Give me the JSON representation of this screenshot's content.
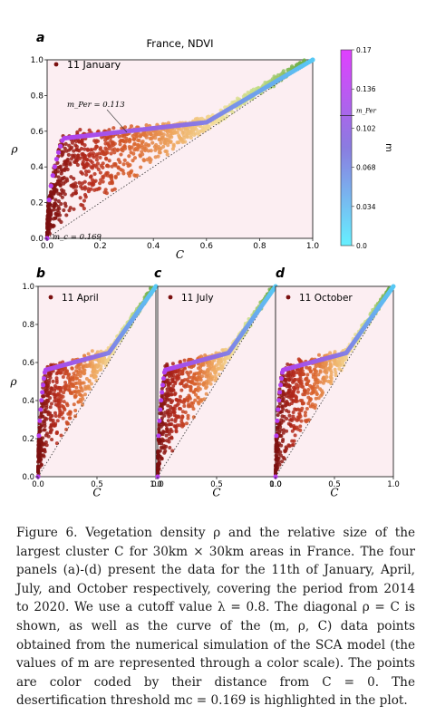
{
  "figure": {
    "panel_title": "France, NDVI",
    "colorbar": {
      "label": "m",
      "ticks": [
        "0.17",
        "0.136",
        "0.102",
        "0.068",
        "0.034",
        "0.0"
      ],
      "marker_label": "m_Per",
      "colors": [
        "#66f0ff",
        "#8a7ce0",
        "#e040ff"
      ]
    },
    "annotations": {
      "m_per": "m_Per = 0.113",
      "m_c": "m_c = 0.169"
    },
    "colors": {
      "background": "#fceef2",
      "cloud": [
        "#7a0f0f",
        "#b52a1c",
        "#d9622b",
        "#eea860",
        "#f3df9a",
        "#c2dd86",
        "#6fae4a"
      ],
      "curve": [
        "#b63cf0",
        "#8f6ee2",
        "#57c8f4"
      ]
    }
  },
  "chart_data": [
    {
      "type": "scatter",
      "panel": "a",
      "title": "France, NDVI",
      "legend": "11 January",
      "legend_placement": "top-left",
      "xlabel": "C",
      "ylabel": "ρ",
      "xlim": [
        0,
        1.0
      ],
      "ylim": [
        0,
        1.0
      ],
      "xticks": [
        "0.0",
        "0.2",
        "0.4",
        "0.6",
        "0.8",
        "1.0"
      ],
      "yticks": [
        "0.0",
        "0.2",
        "0.4",
        "0.6",
        "0.8",
        "1.0"
      ],
      "grid": false,
      "series": [
        {
          "name": "11 January",
          "kind": "scatter cloud",
          "approx_points": [
            [
              0.02,
              0.05
            ],
            [
              0.05,
              0.2
            ],
            [
              0.1,
              0.35
            ],
            [
              0.2,
              0.45
            ],
            [
              0.3,
              0.5
            ],
            [
              0.45,
              0.6
            ],
            [
              0.6,
              0.68
            ],
            [
              0.75,
              0.8
            ],
            [
              0.9,
              0.95
            ]
          ]
        },
        {
          "name": "SCA model (m)",
          "kind": "curve",
          "points": [
            [
              0.0,
              0.0
            ],
            [
              0.02,
              0.3
            ],
            [
              0.05,
              0.5
            ],
            [
              0.1,
              0.56
            ],
            [
              0.2,
              0.59
            ],
            [
              0.3,
              0.6
            ],
            [
              0.4,
              0.61
            ],
            [
              0.5,
              0.62
            ],
            [
              0.6,
              0.65
            ],
            [
              0.7,
              0.72
            ],
            [
              0.8,
              0.8
            ],
            [
              0.9,
              0.9
            ],
            [
              1.0,
              1.0
            ]
          ]
        },
        {
          "name": "diagonal ρ = C",
          "kind": "dotted line",
          "points": [
            [
              0.0,
              0.0
            ],
            [
              1.0,
              1.0
            ]
          ]
        }
      ]
    },
    {
      "type": "scatter",
      "panel": "b",
      "legend": "11 April",
      "xlabel": "C",
      "ylabel": "ρ",
      "xlim": [
        0,
        1.0
      ],
      "ylim": [
        0,
        1.0
      ],
      "xticks": [
        "0.0",
        "0.5",
        "1.0"
      ],
      "yticks": [
        "0.0",
        "0.2",
        "0.4",
        "0.6",
        "0.8",
        "1.0"
      ]
    },
    {
      "type": "scatter",
      "panel": "c",
      "legend": "11 July",
      "xlabel": "C",
      "xlim": [
        0,
        1.0
      ],
      "ylim": [
        0,
        1.0
      ],
      "xticks": [
        "0.0",
        "0.5",
        "1.0"
      ]
    },
    {
      "type": "scatter",
      "panel": "d",
      "legend": "11 October",
      "xlabel": "C",
      "xlim": [
        0,
        1.0
      ],
      "ylim": [
        0,
        1.0
      ],
      "xticks": [
        "0.0",
        "0.5",
        "1.0"
      ]
    }
  ],
  "caption": {
    "text": "Figure 6. Vegetation density ρ and the relative size of the largest cluster C for 30km × 30km areas in France. The four panels (a)-(d) present the data for the 11th of January, April, July, and October respectively, covering the period from 2014 to 2020. We use a cutoff value λ = 0.8. The diagonal ρ = C is shown, as well as the curve of the (m, ρ, C) data points obtained from the numerical simulation of the SCA model (the values of m are represented through a color scale). The points are color coded by their distance from C = 0. The desertification threshold mc = 0.169 is highlighted in the plot."
  }
}
